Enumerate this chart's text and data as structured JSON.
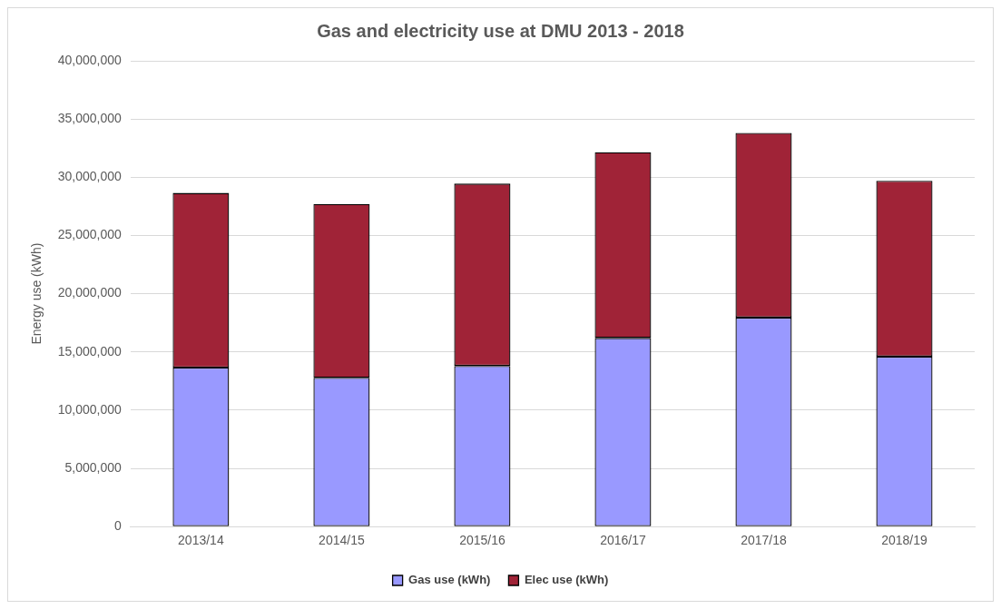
{
  "chart_data": {
    "type": "bar",
    "title": "Gas and electricity use at DMU 2013 - 2018",
    "ylabel": "Energy use (kWh)",
    "categories": [
      "2013/14",
      "2014/15",
      "2015/16",
      "2016/17",
      "2017/18",
      "2018/19"
    ],
    "series": [
      {
        "name": "Gas use (kWh)",
        "color": "#9999ff",
        "values": [
          13650000,
          12780000,
          13800000,
          16200000,
          17950000,
          14600000
        ]
      },
      {
        "name": "Elec use (kWh)",
        "color": "#a02337",
        "values": [
          15000000,
          14920000,
          15650000,
          15950000,
          15850000,
          15100000
        ]
      }
    ],
    "stacked": true,
    "ylim": [
      0,
      40000000
    ],
    "yticks": [
      0,
      {
        "value": 5000000,
        "label": "5,000,000"
      },
      {
        "value": 10000000,
        "label": "10,000,000"
      },
      {
        "value": 15000000,
        "label": "15,000,000"
      },
      {
        "value": 20000000,
        "label": "20,000,000"
      },
      {
        "value": 25000000,
        "label": "25,000,000"
      },
      {
        "value": 30000000,
        "label": "30,000,000"
      },
      {
        "value": 35000000,
        "label": "35,000,000"
      },
      {
        "value": 40000000,
        "label": "40,000,000"
      }
    ],
    "grid": "y",
    "legend": "bottom"
  }
}
